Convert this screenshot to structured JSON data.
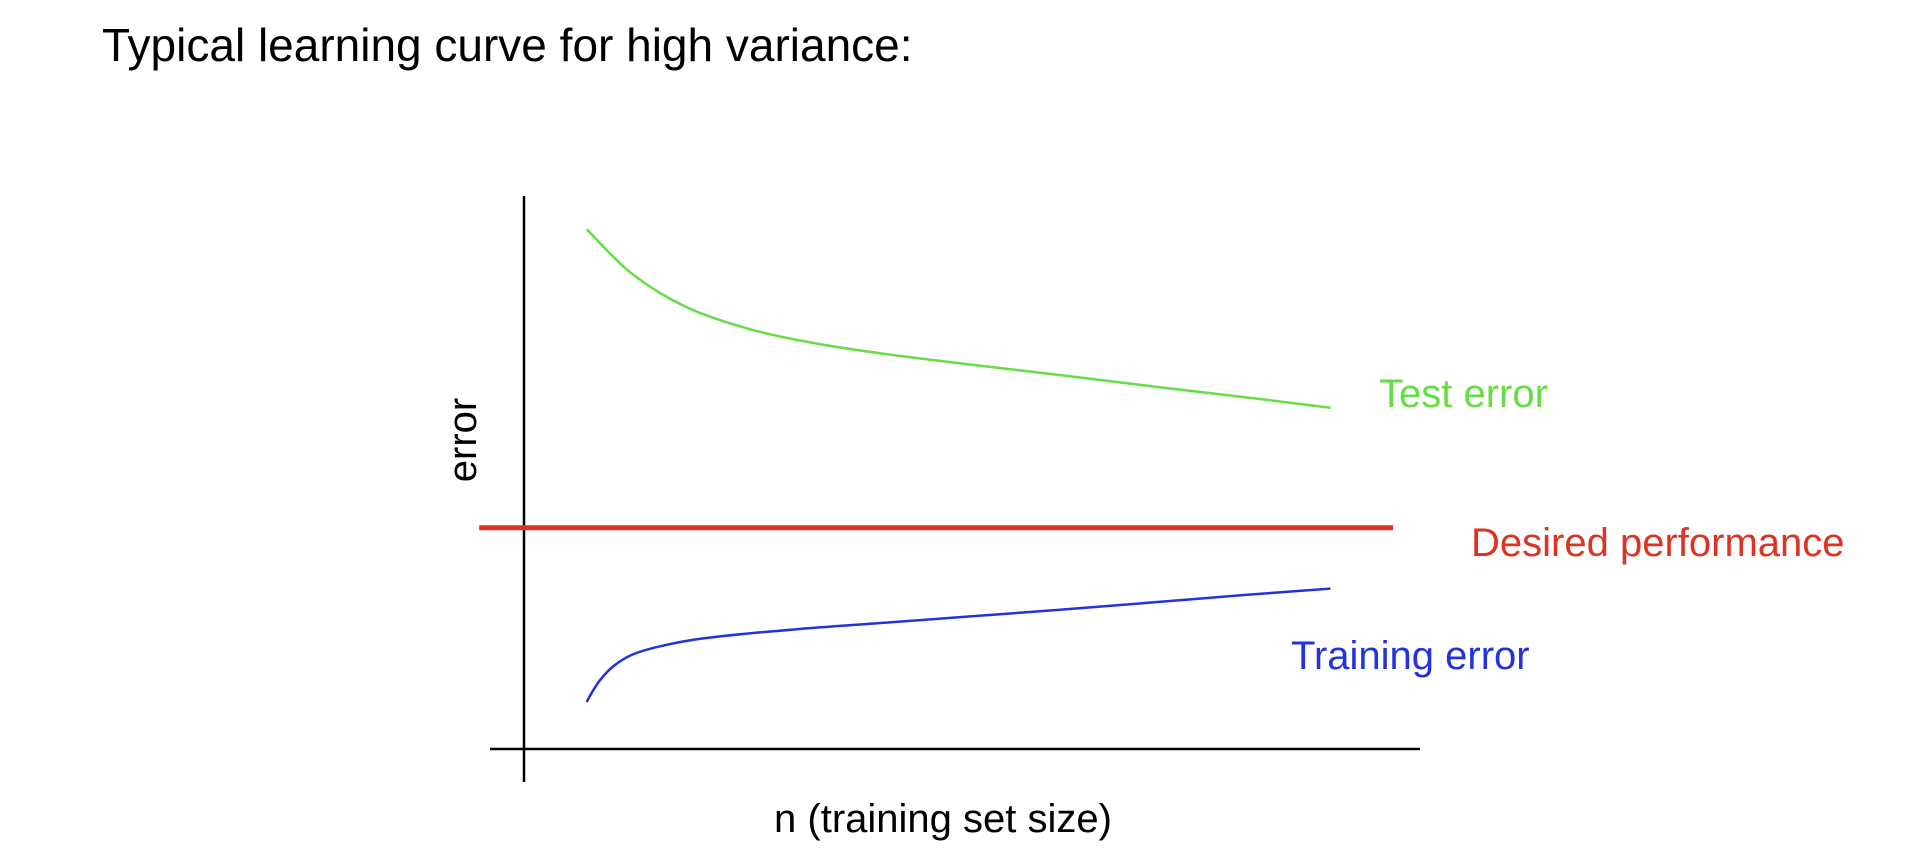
{
  "slide": {
    "title": "Typical learning curve for high variance:"
  },
  "chart_data": {
    "type": "line",
    "title": "",
    "xlabel": "n (training set size)",
    "ylabel": "error",
    "xlim": [
      0,
      1
    ],
    "ylim": [
      0,
      1
    ],
    "grid": false,
    "ticks": false,
    "series": [
      {
        "name": "Test error",
        "color": "#66dd44",
        "x": [
          0.07,
          0.12,
          0.18,
          0.25,
          0.32,
          0.4,
          0.5,
          0.6,
          0.7,
          0.8,
          0.9
        ],
        "y": [
          0.94,
          0.86,
          0.8,
          0.76,
          0.735,
          0.715,
          0.695,
          0.676,
          0.656,
          0.637,
          0.617
        ]
      },
      {
        "name": "Desired performance",
        "color": "#dd3322",
        "x": [
          -0.05,
          0.97
        ],
        "y": [
          0.4,
          0.4
        ]
      },
      {
        "name": "Training error",
        "color": "#2233dd",
        "x": [
          0.07,
          0.075,
          0.085,
          0.1,
          0.12,
          0.15,
          0.2,
          0.3,
          0.4,
          0.5,
          0.6,
          0.7,
          0.8,
          0.9
        ],
        "y": [
          0.085,
          0.1,
          0.125,
          0.15,
          0.17,
          0.185,
          0.2,
          0.216,
          0.228,
          0.24,
          0.252,
          0.265,
          0.278,
          0.29
        ]
      }
    ]
  }
}
